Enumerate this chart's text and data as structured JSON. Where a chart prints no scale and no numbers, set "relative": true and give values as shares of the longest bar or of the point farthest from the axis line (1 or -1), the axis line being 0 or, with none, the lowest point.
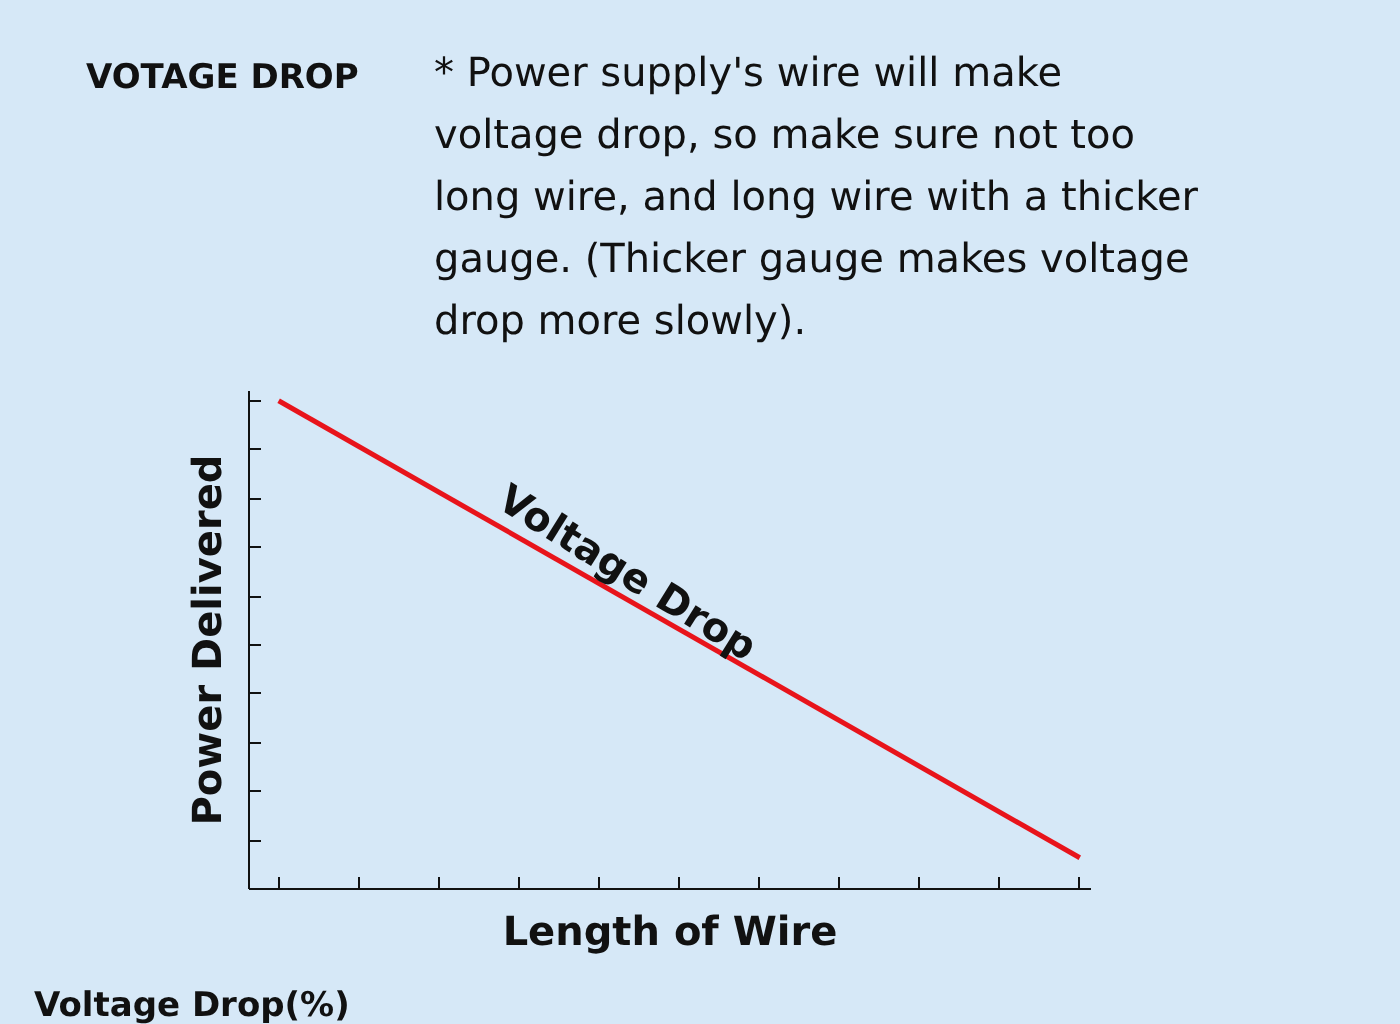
{
  "chart_data": {
    "type": "line",
    "title": "VOTAGE DROP",
    "subtitle": "* Power supply's wire will make voltage drop, so make sure not too long wire, and long wire with a thicker gauge. (Thicker gauge makes voltage drop more slowly).",
    "xlabel": "Length of Wire",
    "ylabel": "Power Delivered",
    "annotations": [
      "Voltage Drop(%)"
    ],
    "categories": [
      null,
      null
    ],
    "relative": true,
    "grid": false,
    "marker": "none",
    "line_style": "solid",
    "series": [
      {
        "name": "Voltage Drop",
        "color": "#e8141b",
        "values": [
          1,
          0.064
        ]
      }
    ]
  }
}
